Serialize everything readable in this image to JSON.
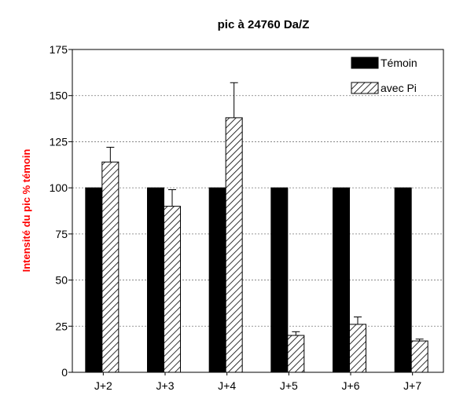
{
  "chart_data": {
    "type": "bar",
    "title": "pic à 24760 Da/Z",
    "xlabel": "",
    "ylabel": "Intensité du pic % témoin",
    "categories": [
      "J+2",
      "J+3",
      "J+4",
      "J+5",
      "J+6",
      "J+7"
    ],
    "series": [
      {
        "name": "Témoin",
        "values": [
          100,
          100,
          100,
          100,
          100,
          100
        ],
        "errors": [
          0,
          0,
          0,
          0,
          0,
          0
        ]
      },
      {
        "name": "avec Pi",
        "values": [
          114,
          90,
          138,
          20,
          26,
          17
        ],
        "errors": [
          8,
          9,
          19,
          2,
          4,
          1
        ]
      }
    ],
    "ylim": [
      0,
      175
    ],
    "yticks": [
      0,
      25,
      50,
      75,
      100,
      125,
      150,
      175
    ],
    "grid": true,
    "legend_position": "top-right"
  },
  "colors": {
    "temoin_fill": "#000000",
    "pi_hatch": "#000000",
    "ylabel_color": "#ff0000",
    "grid": "#777777"
  }
}
